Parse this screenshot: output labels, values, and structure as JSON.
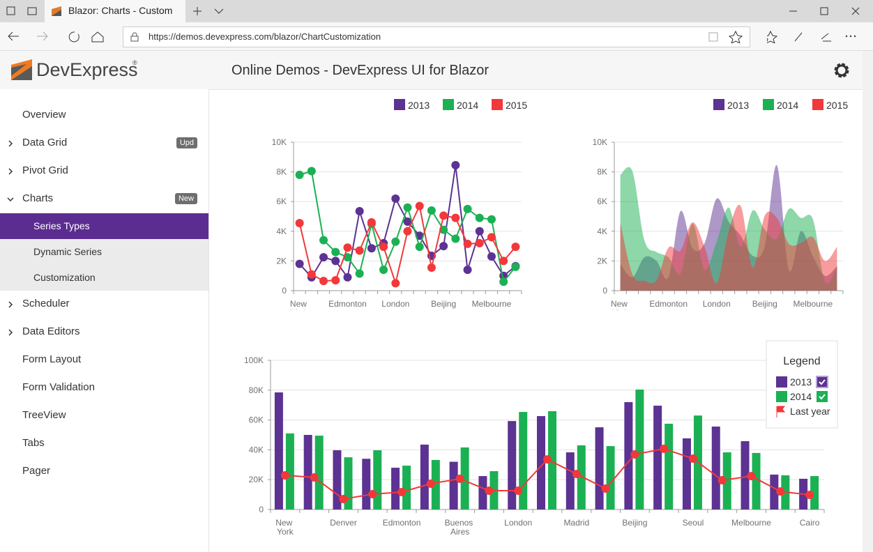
{
  "browser": {
    "tab_title": "Blazor: Charts - Custom",
    "url": "https://demos.devexpress.com/blazor/ChartCustomization"
  },
  "header": {
    "logo": "DevExpress",
    "logo_mark": "®",
    "title": "Online Demos - DevExpress UI for Blazor"
  },
  "nav": [
    {
      "label": "Overview"
    },
    {
      "label": "Data Grid",
      "badge": "Upd",
      "expandable": true
    },
    {
      "label": "Pivot Grid",
      "expandable": true
    },
    {
      "label": "Charts",
      "badge": "New",
      "expandable": true,
      "expanded": true
    },
    {
      "label": "Series Types",
      "sub": true,
      "selected": true
    },
    {
      "label": "Dynamic Series",
      "sub": true
    },
    {
      "label": "Customization",
      "sub": true
    },
    {
      "label": "Scheduler",
      "expandable": true
    },
    {
      "label": "Data Editors",
      "expandable": true
    },
    {
      "label": "Form Layout"
    },
    {
      "label": "Form Validation"
    },
    {
      "label": "TreeView"
    },
    {
      "label": "Tabs"
    },
    {
      "label": "Pager"
    }
  ],
  "chart_data": [
    {
      "type": "line",
      "categories": [
        "New York",
        null,
        null,
        null,
        "Edmonton",
        null,
        null,
        null,
        "London",
        null,
        null,
        null,
        "Beijing",
        null,
        null,
        null,
        "Melbourne",
        null,
        null
      ],
      "series": [
        {
          "name": "2013",
          "color": "#5c3292",
          "values": [
            1800,
            900,
            2250,
            2000,
            900,
            5350,
            2850,
            3200,
            6200,
            4650,
            3700,
            2350,
            3000,
            8450,
            1400,
            4000,
            2300,
            1000,
            1650
          ]
        },
        {
          "name": "2014",
          "color": "#1cb054",
          "values": [
            7800,
            8050,
            3400,
            2600,
            2250,
            1150,
            4500,
            1400,
            3300,
            5600,
            2950,
            5400,
            4100,
            3500,
            5500,
            4900,
            4800,
            600,
            1600
          ]
        },
        {
          "name": "2015",
          "color": "#f2383a",
          "values": [
            4550,
            1100,
            650,
            700,
            2900,
            2700,
            4600,
            2950,
            500,
            4000,
            5700,
            1550,
            5050,
            4900,
            3150,
            3200,
            3600,
            2000,
            2950
          ]
        }
      ],
      "ylim": [
        0,
        10000
      ],
      "yticks": [
        0,
        {
          "value": 2000,
          "label": "2K"
        },
        {
          "value": 4000,
          "label": "4K"
        },
        {
          "value": 6000,
          "label": "6K"
        },
        {
          "value": 8000,
          "label": "8K"
        },
        {
          "value": 10000,
          "label": "10K"
        }
      ],
      "grid": true
    },
    {
      "type": "area",
      "categories": [
        "New York",
        null,
        null,
        null,
        "Edmonton",
        null,
        null,
        null,
        "London",
        null,
        null,
        null,
        "Beijing",
        null,
        null,
        null,
        "Melbourne",
        null,
        null
      ],
      "series": [
        {
          "name": "2013",
          "color": "#5c3292",
          "values": [
            1800,
            900,
            2250,
            2000,
            900,
            5350,
            2850,
            3200,
            6200,
            4650,
            3700,
            2350,
            3000,
            8450,
            1400,
            4000,
            2300,
            1000,
            1650
          ]
        },
        {
          "name": "2014",
          "color": "#1cb054",
          "values": [
            7800,
            8050,
            3400,
            2600,
            2250,
            1150,
            4500,
            1400,
            3300,
            5600,
            2950,
            5400,
            4100,
            3500,
            5500,
            4900,
            4800,
            600,
            1600
          ]
        },
        {
          "name": "2015",
          "color": "#f2383a",
          "values": [
            4550,
            1100,
            650,
            700,
            2900,
            2700,
            4600,
            2950,
            500,
            4000,
            5700,
            1550,
            5050,
            4900,
            3150,
            3200,
            3600,
            2000,
            2950
          ]
        }
      ],
      "ylim": [
        0,
        10000
      ],
      "yticks": [
        0,
        {
          "value": 2000,
          "label": "2K"
        },
        {
          "value": 4000,
          "label": "4K"
        },
        {
          "value": 6000,
          "label": "6K"
        },
        {
          "value": 8000,
          "label": "8K"
        },
        {
          "value": 10000,
          "label": "10K"
        }
      ],
      "grid": true
    },
    {
      "type": "bar",
      "legend_title": "Legend",
      "categories": [
        "New York",
        null,
        "Denver",
        null,
        "Edmonton",
        null,
        "Buenos Aires",
        null,
        "London",
        null,
        "Madrid",
        null,
        "Beijing",
        null,
        "Seoul",
        null,
        "Melbourne",
        null,
        "Cairo"
      ],
      "series": [
        {
          "name": "2013",
          "color": "#5c3292",
          "values": [
            78500,
            50000,
            39700,
            34000,
            28000,
            43500,
            32000,
            22400,
            59300,
            62600,
            38300,
            55100,
            72000,
            69600,
            47700,
            55600,
            45800,
            23400,
            20600
          ]
        },
        {
          "name": "2014",
          "color": "#1cb054",
          "values": [
            51000,
            49500,
            35000,
            39700,
            29400,
            33200,
            41600,
            25700,
            65400,
            65900,
            43000,
            42500,
            80400,
            57500,
            63000,
            38300,
            37900,
            22900,
            22400
          ]
        },
        {
          "name": "Last year",
          "type": "line",
          "color": "#f2383a",
          "values": [
            22900,
            21500,
            7000,
            10300,
            11700,
            17300,
            20600,
            12600,
            12600,
            33600,
            23800,
            14000,
            36900,
            40700,
            34100,
            19600,
            22400,
            12100,
            9800
          ]
        }
      ],
      "ylim": [
        0,
        100000
      ],
      "yticks": [
        0,
        {
          "value": 20000,
          "label": "20K"
        },
        {
          "value": 40000,
          "label": "40K"
        },
        {
          "value": 60000,
          "label": "60K"
        },
        {
          "value": 80000,
          "label": "80K"
        },
        {
          "value": 100000,
          "label": "100K"
        }
      ],
      "grid": true
    }
  ]
}
